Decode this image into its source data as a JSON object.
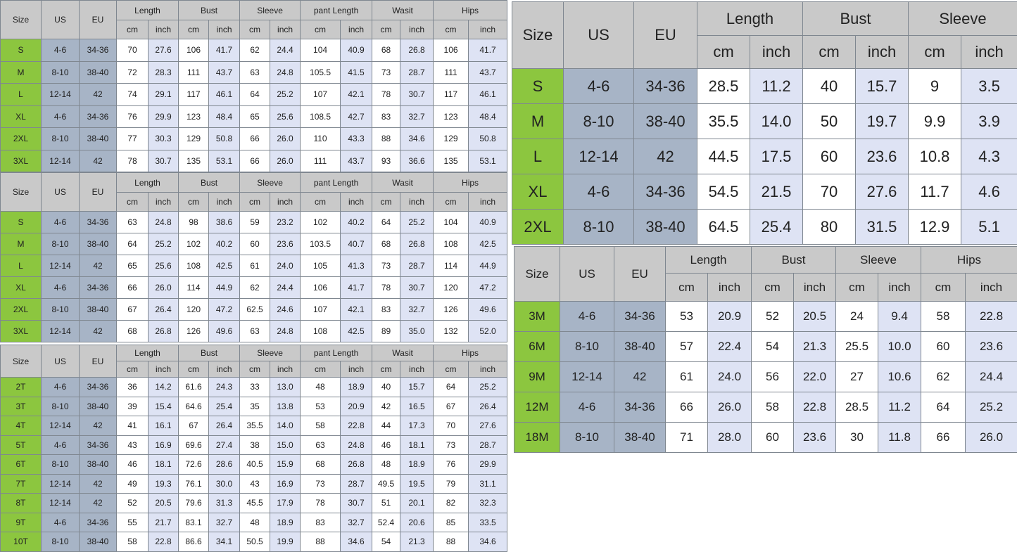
{
  "colors": {
    "size_column": "#8cc63f",
    "us_eu_columns": "#a7b4c6",
    "inch_columns": "#dee3f4",
    "header": "#c9c9c9"
  },
  "tables": [
    {
      "id": "adult-chart-1",
      "fixed_headers": [
        "Size",
        "US",
        "EU"
      ],
      "groups": [
        "Length",
        "Bust",
        "Sleeve",
        "pant Length",
        "Wasit",
        "Hips"
      ],
      "units": [
        "cm",
        "inch"
      ],
      "rows": [
        [
          "S",
          "4-6",
          "34-36",
          "70",
          "27.6",
          "106",
          "41.7",
          "62",
          "24.4",
          "104",
          "40.9",
          "68",
          "26.8",
          "106",
          "41.7"
        ],
        [
          "M",
          "8-10",
          "38-40",
          "72",
          "28.3",
          "111",
          "43.7",
          "63",
          "24.8",
          "105.5",
          "41.5",
          "73",
          "28.7",
          "111",
          "43.7"
        ],
        [
          "L",
          "12-14",
          "42",
          "74",
          "29.1",
          "117",
          "46.1",
          "64",
          "25.2",
          "107",
          "42.1",
          "78",
          "30.7",
          "117",
          "46.1"
        ],
        [
          "XL",
          "4-6",
          "34-36",
          "76",
          "29.9",
          "123",
          "48.4",
          "65",
          "25.6",
          "108.5",
          "42.7",
          "83",
          "32.7",
          "123",
          "48.4"
        ],
        [
          "2XL",
          "8-10",
          "38-40",
          "77",
          "30.3",
          "129",
          "50.8",
          "66",
          "26.0",
          "110",
          "43.3",
          "88",
          "34.6",
          "129",
          "50.8"
        ],
        [
          "3XL",
          "12-14",
          "42",
          "78",
          "30.7",
          "135",
          "53.1",
          "66",
          "26.0",
          "111",
          "43.7",
          "93",
          "36.6",
          "135",
          "53.1"
        ]
      ]
    },
    {
      "id": "adult-chart-2",
      "fixed_headers": [
        "Size",
        "US",
        "EU"
      ],
      "groups": [
        "Length",
        "Bust",
        "Sleeve",
        "pant Length",
        "Wasit",
        "Hips"
      ],
      "units": [
        "cm",
        "inch"
      ],
      "rows": [
        [
          "S",
          "4-6",
          "34-36",
          "63",
          "24.8",
          "98",
          "38.6",
          "59",
          "23.2",
          "102",
          "40.2",
          "64",
          "25.2",
          "104",
          "40.9"
        ],
        [
          "M",
          "8-10",
          "38-40",
          "64",
          "25.2",
          "102",
          "40.2",
          "60",
          "23.6",
          "103.5",
          "40.7",
          "68",
          "26.8",
          "108",
          "42.5"
        ],
        [
          "L",
          "12-14",
          "42",
          "65",
          "25.6",
          "108",
          "42.5",
          "61",
          "24.0",
          "105",
          "41.3",
          "73",
          "28.7",
          "114",
          "44.9"
        ],
        [
          "XL",
          "4-6",
          "34-36",
          "66",
          "26.0",
          "114",
          "44.9",
          "62",
          "24.4",
          "106",
          "41.7",
          "78",
          "30.7",
          "120",
          "47.2"
        ],
        [
          "2XL",
          "8-10",
          "38-40",
          "67",
          "26.4",
          "120",
          "47.2",
          "62.5",
          "24.6",
          "107",
          "42.1",
          "83",
          "32.7",
          "126",
          "49.6"
        ],
        [
          "3XL",
          "12-14",
          "42",
          "68",
          "26.8",
          "126",
          "49.6",
          "63",
          "24.8",
          "108",
          "42.5",
          "89",
          "35.0",
          "132",
          "52.0"
        ]
      ]
    },
    {
      "id": "kids-chart",
      "fixed_headers": [
        "Size",
        "US",
        "EU"
      ],
      "groups": [
        "Length",
        "Bust",
        "Sleeve",
        "pant Length",
        "Wasit",
        "Hips"
      ],
      "units": [
        "cm",
        "inch"
      ],
      "rows": [
        [
          "2T",
          "4-6",
          "34-36",
          "36",
          "14.2",
          "61.6",
          "24.3",
          "33",
          "13.0",
          "48",
          "18.9",
          "40",
          "15.7",
          "64",
          "25.2"
        ],
        [
          "3T",
          "8-10",
          "38-40",
          "39",
          "15.4",
          "64.6",
          "25.4",
          "35",
          "13.8",
          "53",
          "20.9",
          "42",
          "16.5",
          "67",
          "26.4"
        ],
        [
          "4T",
          "12-14",
          "42",
          "41",
          "16.1",
          "67",
          "26.4",
          "35.5",
          "14.0",
          "58",
          "22.8",
          "44",
          "17.3",
          "70",
          "27.6"
        ],
        [
          "5T",
          "4-6",
          "34-36",
          "43",
          "16.9",
          "69.6",
          "27.4",
          "38",
          "15.0",
          "63",
          "24.8",
          "46",
          "18.1",
          "73",
          "28.7"
        ],
        [
          "6T",
          "8-10",
          "38-40",
          "46",
          "18.1",
          "72.6",
          "28.6",
          "40.5",
          "15.9",
          "68",
          "26.8",
          "48",
          "18.9",
          "76",
          "29.9"
        ],
        [
          "7T",
          "12-14",
          "42",
          "49",
          "19.3",
          "76.1",
          "30.0",
          "43",
          "16.9",
          "73",
          "28.7",
          "49.5",
          "19.5",
          "79",
          "31.1"
        ],
        [
          "8T",
          "12-14",
          "42",
          "52",
          "20.5",
          "79.6",
          "31.3",
          "45.5",
          "17.9",
          "78",
          "30.7",
          "51",
          "20.1",
          "82",
          "32.3"
        ],
        [
          "9T",
          "4-6",
          "34-36",
          "55",
          "21.7",
          "83.1",
          "32.7",
          "48",
          "18.9",
          "83",
          "32.7",
          "52.4",
          "20.6",
          "85",
          "33.5"
        ],
        [
          "10T",
          "8-10",
          "38-40",
          "58",
          "22.8",
          "86.6",
          "34.1",
          "50.5",
          "19.9",
          "88",
          "34.6",
          "54",
          "21.3",
          "88",
          "34.6"
        ]
      ]
    },
    {
      "id": "top-chart",
      "fixed_headers": [
        "Size",
        "US",
        "EU"
      ],
      "groups": [
        "Length",
        "Bust",
        "Sleeve"
      ],
      "units": [
        "cm",
        "inch"
      ],
      "rows": [
        [
          "S",
          "4-6",
          "34-36",
          "28.5",
          "11.2",
          "40",
          "15.7",
          "9",
          "3.5"
        ],
        [
          "M",
          "8-10",
          "38-40",
          "35.5",
          "14.0",
          "50",
          "19.7",
          "9.9",
          "3.9"
        ],
        [
          "L",
          "12-14",
          "42",
          "44.5",
          "17.5",
          "60",
          "23.6",
          "10.8",
          "4.3"
        ],
        [
          "XL",
          "4-6",
          "34-36",
          "54.5",
          "21.5",
          "70",
          "27.6",
          "11.7",
          "4.6"
        ],
        [
          "2XL",
          "8-10",
          "38-40",
          "64.5",
          "25.4",
          "80",
          "31.5",
          "12.9",
          "5.1"
        ]
      ]
    },
    {
      "id": "baby-chart",
      "fixed_headers": [
        "Size",
        "US",
        "EU"
      ],
      "groups": [
        "Length",
        "Bust",
        "Sleeve",
        "Hips"
      ],
      "units": [
        "cm",
        "inch"
      ],
      "rows": [
        [
          "3M",
          "4-6",
          "34-36",
          "53",
          "20.9",
          "52",
          "20.5",
          "24",
          "9.4",
          "58",
          "22.8"
        ],
        [
          "6M",
          "8-10",
          "38-40",
          "57",
          "22.4",
          "54",
          "21.3",
          "25.5",
          "10.0",
          "60",
          "23.6"
        ],
        [
          "9M",
          "12-14",
          "42",
          "61",
          "24.0",
          "56",
          "22.0",
          "27",
          "10.6",
          "62",
          "24.4"
        ],
        [
          "12M",
          "4-6",
          "34-36",
          "66",
          "26.0",
          "58",
          "22.8",
          "28.5",
          "11.2",
          "64",
          "25.2"
        ],
        [
          "18M",
          "8-10",
          "38-40",
          "71",
          "28.0",
          "60",
          "23.6",
          "30",
          "11.8",
          "66",
          "26.0"
        ]
      ]
    }
  ]
}
